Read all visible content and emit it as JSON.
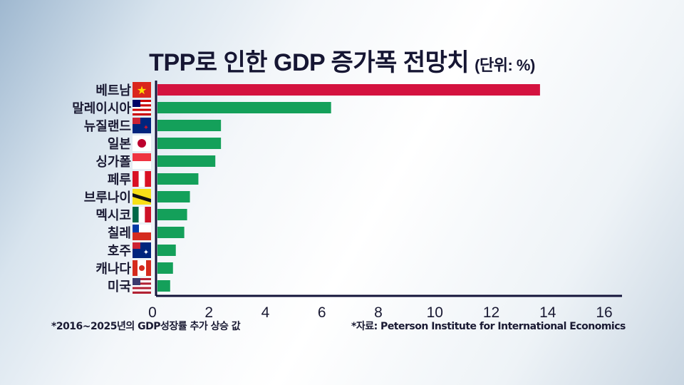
{
  "chart_data": {
    "type": "bar",
    "orientation": "horizontal",
    "title": "TPP로 인한 GDP 증가폭 전망치",
    "unit_label": "(단위: %)",
    "categories": [
      "베트남",
      "말레이시아",
      "뉴질랜드",
      "일본",
      "싱가폴",
      "페루",
      "브루나이",
      "멕시코",
      "칠레",
      "호주",
      "캐나다",
      "미국"
    ],
    "values": [
      13.6,
      6.2,
      2.3,
      2.3,
      2.1,
      1.5,
      1.2,
      1.1,
      1.0,
      0.7,
      0.6,
      0.5
    ],
    "flags": [
      "vietnam-flag",
      "malaysia-flag",
      "new-zealand-flag",
      "japan-flag",
      "singapore-flag",
      "peru-flag",
      "brunei-flag",
      "mexico-flag",
      "chile-flag",
      "australia-flag",
      "canada-flag",
      "usa-flag"
    ],
    "xlim": [
      0,
      16
    ],
    "xticks": [
      "0",
      "2",
      "4",
      "6",
      "8",
      "10",
      "12",
      "14",
      "16"
    ],
    "grid": false,
    "colors": {
      "highlight": "#d4123f",
      "default": "#14a05a",
      "axis": "#14143a"
    }
  },
  "footnotes": {
    "left": "*2016~2025년의 GDP성장률 추가 상승 값",
    "right": "*자료: Peterson Institute for International Economics"
  }
}
